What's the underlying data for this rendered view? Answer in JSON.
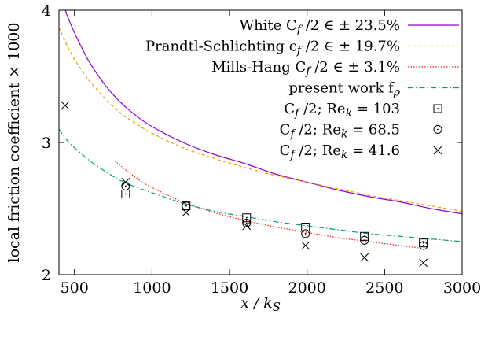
{
  "chart_data": {
    "type": "line",
    "xlabel": "x / k_S",
    "ylabel": "local friction coefficient × 1000",
    "xlim": [
      400,
      3000
    ],
    "ylim": [
      2,
      4
    ],
    "x_ticks": [
      500,
      1000,
      1500,
      2000,
      2500,
      3000
    ],
    "y_ticks": [
      2,
      3,
      4
    ],
    "grid": false,
    "legend_position": "top-right",
    "series": [
      {
        "name": "White C_f /2 ∈ ± 23.5%",
        "kind": "line",
        "dash": "solid",
        "color": "#9400d3",
        "x": [
          400,
          450,
          500,
          550,
          600,
          700,
          800,
          900,
          1000,
          1200,
          1400,
          1600,
          1800,
          2000,
          2200,
          2400,
          2600,
          2800,
          3000
        ],
        "y": [
          4.15,
          3.97,
          3.83,
          3.71,
          3.6,
          3.43,
          3.3,
          3.2,
          3.12,
          3.0,
          2.91,
          2.84,
          2.76,
          2.7,
          2.64,
          2.59,
          2.55,
          2.5,
          2.46
        ]
      },
      {
        "name": "Prandtl-Schlichting c_f /2 ∈ ± 19.7%",
        "kind": "line",
        "dash": "dashed",
        "color": "#e69f00",
        "x": [
          400,
          450,
          500,
          550,
          600,
          700,
          800,
          900,
          1000,
          1200,
          1400,
          1600,
          1800,
          2000,
          2200,
          2400,
          2600,
          2800,
          3000
        ],
        "y": [
          3.87,
          3.74,
          3.63,
          3.54,
          3.46,
          3.33,
          3.22,
          3.14,
          3.07,
          2.96,
          2.88,
          2.81,
          2.75,
          2.7,
          2.65,
          2.6,
          2.56,
          2.52,
          2.48
        ]
      },
      {
        "name": "Mills-Hang C_f /2 ∈ ± 3.1%",
        "kind": "line",
        "dash": "dotted",
        "color": "#e51e10",
        "x": [
          760,
          900,
          1000,
          1200,
          1400,
          1600,
          1800,
          2000,
          2200,
          2400,
          2600,
          2740
        ],
        "y": [
          2.86,
          2.73,
          2.66,
          2.55,
          2.47,
          2.41,
          2.36,
          2.32,
          2.28,
          2.25,
          2.22,
          2.2
        ]
      },
      {
        "name": "present work f_ρ",
        "kind": "line",
        "dash": "dashdot",
        "color": "#009e73",
        "x": [
          400,
          450,
          500,
          600,
          700,
          800,
          900,
          1000,
          1200,
          1400,
          1600,
          1800,
          2000,
          2200,
          2400,
          2600,
          2800,
          3000
        ],
        "y": [
          3.1,
          3.02,
          2.96,
          2.86,
          2.78,
          2.71,
          2.66,
          2.62,
          2.54,
          2.48,
          2.44,
          2.4,
          2.37,
          2.34,
          2.31,
          2.29,
          2.27,
          2.25
        ]
      },
      {
        "name": "C_f /2; Re_k = 103",
        "kind": "points",
        "marker": "square-dot",
        "color": "#000000",
        "x": [
          830,
          1220,
          1610,
          1990,
          2370,
          2750
        ],
        "y": [
          2.61,
          2.52,
          2.43,
          2.36,
          2.29,
          2.24
        ]
      },
      {
        "name": "C_f /2; Re_k = 68.5",
        "kind": "points",
        "marker": "circle-dot",
        "color": "#000000",
        "x": [
          830,
          1220,
          1610,
          1990,
          2370,
          2750
        ],
        "y": [
          2.67,
          2.52,
          2.39,
          2.31,
          2.26,
          2.22
        ]
      },
      {
        "name": "C_f /2; Re_k = 41.6",
        "kind": "points",
        "marker": "cross",
        "color": "#000000",
        "x": [
          440,
          830,
          1220,
          1610,
          1990,
          2370,
          2750
        ],
        "y": [
          3.28,
          2.7,
          2.47,
          2.37,
          2.22,
          2.13,
          2.09
        ]
      }
    ]
  }
}
